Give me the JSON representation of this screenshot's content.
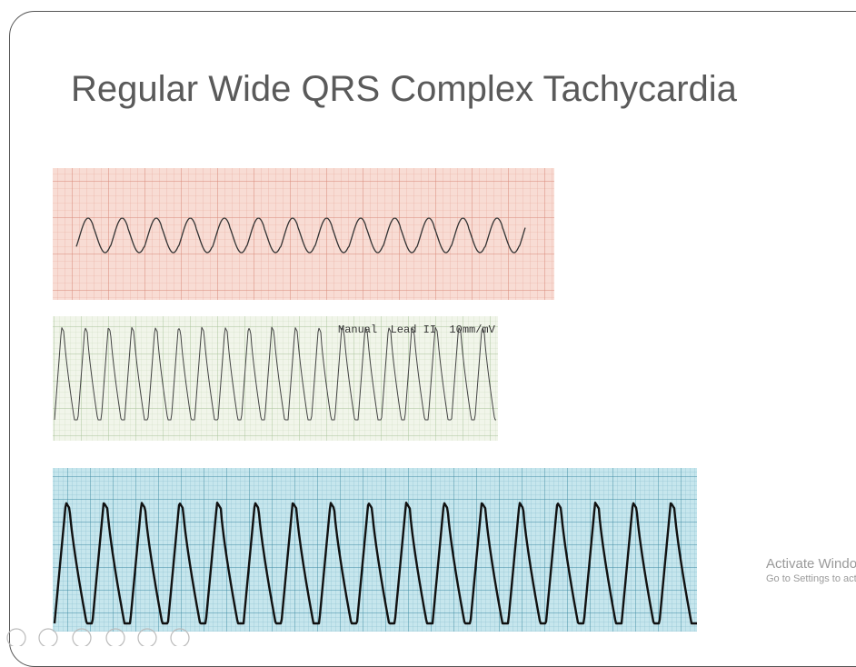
{
  "slide": {
    "title": "Regular Wide QRS Complex Tachycardia",
    "strip_label": "Manual  Lead II  10mm/mV"
  },
  "watermark": {
    "heading": "Activate Windows",
    "subtext": "Go to Settings to activate Windows."
  }
}
